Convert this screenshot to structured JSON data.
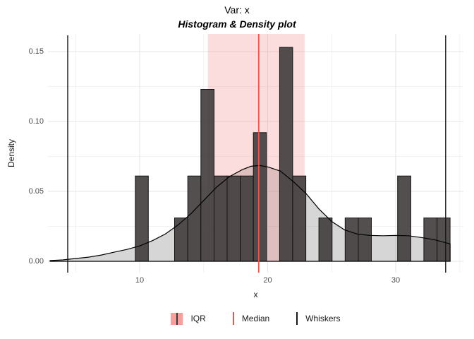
{
  "title": "Var: x",
  "subtitle": "Histogram & Density plot",
  "axes": {
    "x_label": "x",
    "y_label": "Density"
  },
  "legend": {
    "items": [
      {
        "key": "iqr-swatch",
        "label": "IQR"
      },
      {
        "key": "median-line",
        "label": "Median"
      },
      {
        "key": "whisker-line",
        "label": "Whiskers"
      }
    ]
  },
  "colors": {
    "background": "#ffffff",
    "grid_major": "#e4e4e4",
    "grid_minor": "#f2f2f2",
    "bar_fill": "#403c3c",
    "bar_fill_opacity": 0.9,
    "bar_stroke": "#141414",
    "density_fill": "#808080",
    "density_fill_opacity": 0.32,
    "density_line": "#000000",
    "iqr_fill": "#f08080",
    "iqr_fill_opacity": 0.27,
    "median_line": "#f6514a",
    "whisker_line": "#141414",
    "tick_text": "#4d4d4d",
    "axis_title_text": "#1a1a1a"
  },
  "chart_data": {
    "type": "bar",
    "subtype": "histogram_with_density",
    "title": "Var: x",
    "subtitle": "Histogram & Density plot",
    "xlabel": "x",
    "ylabel": "Density",
    "xlim": [
      2.8,
      35.3
    ],
    "ylim": [
      0,
      0.163
    ],
    "x_ticks": [
      {
        "v": 10,
        "label": "10"
      },
      {
        "v": 20,
        "label": "20"
      },
      {
        "v": 30,
        "label": "30"
      }
    ],
    "x_minor": [
      5,
      15,
      25,
      35
    ],
    "y_ticks": [
      {
        "v": 0,
        "label": "0.00"
      },
      {
        "v": 0.05,
        "label": "0.05"
      },
      {
        "v": 0.1,
        "label": "0.10"
      },
      {
        "v": 0.15,
        "label": "0.15"
      }
    ],
    "y_minor": [
      0.025,
      0.075,
      0.125
    ],
    "grid": true,
    "legend_position": "bottom",
    "bars": [
      {
        "x1": 9.66,
        "x2": 10.68,
        "density": 0.061
      },
      {
        "x1": 12.73,
        "x2": 13.76,
        "density": 0.031
      },
      {
        "x1": 13.76,
        "x2": 14.78,
        "density": 0.061
      },
      {
        "x1": 14.78,
        "x2": 15.81,
        "density": 0.123
      },
      {
        "x1": 15.81,
        "x2": 16.83,
        "density": 0.061
      },
      {
        "x1": 16.83,
        "x2": 17.86,
        "density": 0.061
      },
      {
        "x1": 17.86,
        "x2": 18.88,
        "density": 0.061
      },
      {
        "x1": 18.88,
        "x2": 19.9,
        "density": 0.092
      },
      {
        "x1": 20.93,
        "x2": 21.95,
        "density": 0.153
      },
      {
        "x1": 21.95,
        "x2": 22.98,
        "density": 0.061
      },
      {
        "x1": 24.0,
        "x2": 25.03,
        "density": 0.031
      },
      {
        "x1": 26.05,
        "x2": 27.08,
        "density": 0.031
      },
      {
        "x1": 27.08,
        "x2": 28.1,
        "density": 0.031
      },
      {
        "x1": 30.15,
        "x2": 31.18,
        "density": 0.061
      },
      {
        "x1": 32.2,
        "x2": 33.23,
        "density": 0.031
      },
      {
        "x1": 33.23,
        "x2": 34.25,
        "density": 0.031
      }
    ],
    "density_curve": [
      [
        3.0,
        0.0005
      ],
      [
        4.0,
        0.001
      ],
      [
        5.0,
        0.002
      ],
      [
        6.0,
        0.003
      ],
      [
        7.0,
        0.0045
      ],
      [
        8.0,
        0.0065
      ],
      [
        9.0,
        0.0085
      ],
      [
        10.0,
        0.011
      ],
      [
        11.0,
        0.0148
      ],
      [
        12.0,
        0.0195
      ],
      [
        13.0,
        0.026
      ],
      [
        14.0,
        0.034
      ],
      [
        15.0,
        0.0435
      ],
      [
        16.0,
        0.053
      ],
      [
        17.0,
        0.0605
      ],
      [
        18.0,
        0.0655
      ],
      [
        18.7,
        0.068
      ],
      [
        19.4,
        0.0685
      ],
      [
        20.0,
        0.0675
      ],
      [
        21.0,
        0.0645
      ],
      [
        22.0,
        0.057
      ],
      [
        23.0,
        0.0485
      ],
      [
        24.0,
        0.0375
      ],
      [
        25.0,
        0.0285
      ],
      [
        26.0,
        0.0225
      ],
      [
        27.0,
        0.0195
      ],
      [
        28.0,
        0.0185
      ],
      [
        29.0,
        0.0183
      ],
      [
        30.0,
        0.0185
      ],
      [
        31.0,
        0.0183
      ],
      [
        32.0,
        0.017
      ],
      [
        33.0,
        0.0155
      ],
      [
        34.25,
        0.0125
      ]
    ],
    "median": 19.3,
    "iqr": [
      15.32,
      22.88
    ],
    "whiskers": [
      4.38,
      33.9
    ]
  }
}
